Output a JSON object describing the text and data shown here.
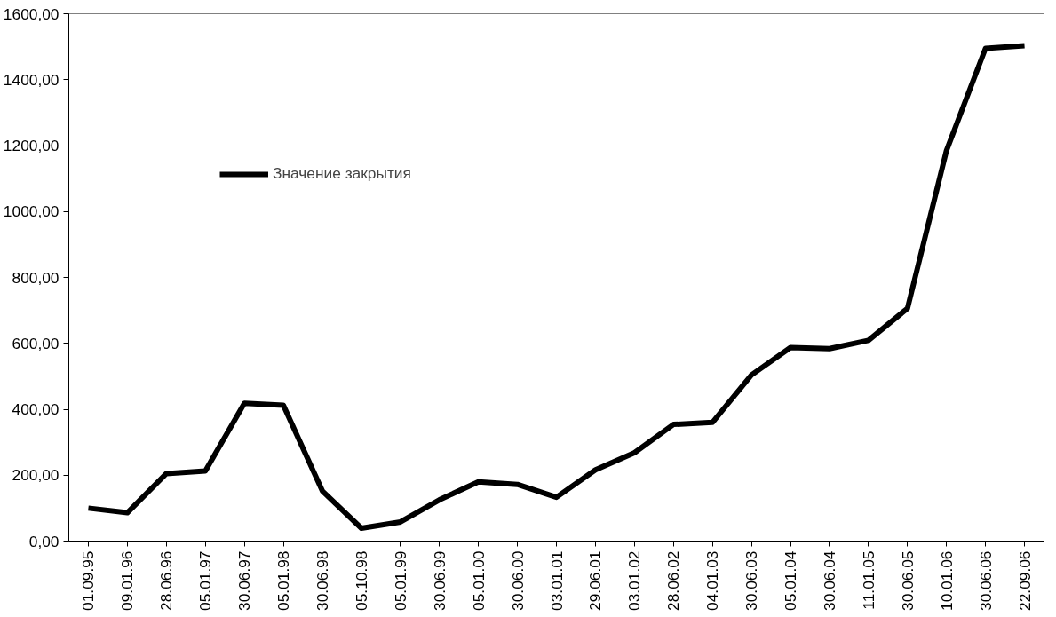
{
  "chart_data": {
    "type": "line",
    "categories": [
      "01.09.95",
      "09.01.96",
      "28.06.96",
      "05.01.97",
      "30.06.97",
      "05.01.98",
      "30.06.98",
      "05.10.98",
      "05.01.99",
      "30.06.99",
      "05.01.00",
      "30.06.00",
      "03.01.01",
      "29.06.01",
      "03.01.02",
      "28.06.02",
      "04.01.03",
      "30.06.03",
      "05.01.04",
      "30.06.04",
      "11.01.05",
      "30.06.05",
      "10.01.06",
      "30.06.06",
      "22.09.06"
    ],
    "series": [
      {
        "name": "Значение закрытия",
        "color": "#000000",
        "values": [
          100,
          86,
          205,
          213,
          418,
          412,
          152,
          39,
          58,
          125,
          180,
          172,
          133,
          216,
          268,
          354,
          360,
          504,
          587,
          584,
          609,
          706,
          1185,
          1495,
          1503
        ]
      }
    ],
    "ylim": [
      0,
      1600
    ],
    "yticks": [
      {
        "value": 0,
        "label": "0,00"
      },
      {
        "value": 200,
        "label": "200,00"
      },
      {
        "value": 400,
        "label": "400,00"
      },
      {
        "value": 600,
        "label": "600,00"
      },
      {
        "value": 800,
        "label": "800,00"
      },
      {
        "value": 1000,
        "label": "1000,00"
      },
      {
        "value": 1200,
        "label": "1200,00"
      },
      {
        "value": 1400,
        "label": "1400,00"
      },
      {
        "value": 1600,
        "label": "1600,00"
      }
    ],
    "grid": false,
    "legend": "top left",
    "marker": "none",
    "line_style": "solid"
  }
}
